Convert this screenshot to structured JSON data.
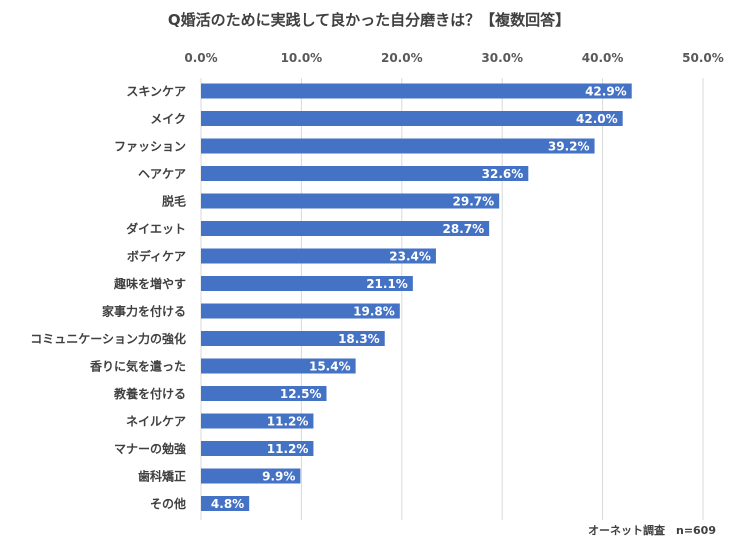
{
  "chart_data": {
    "type": "bar",
    "orientation": "horizontal",
    "title": "Q婚活のために実践して良かった自分磨きは？【複数回答】",
    "categories": [
      "スキンケア",
      "メイク",
      "ファッション",
      "ヘアケア",
      "脱毛",
      "ダイエット",
      "ボディケア",
      "趣味を増やす",
      "家事力を付ける",
      "コミュニケーション力の強化",
      "香りに気を遣った",
      "教養を付ける",
      "ネイルケア",
      "マナーの勉強",
      "歯科矯正",
      "その他"
    ],
    "values": [
      42.9,
      42.0,
      39.2,
      32.6,
      29.7,
      28.7,
      23.4,
      21.1,
      19.8,
      18.3,
      15.4,
      12.5,
      11.2,
      11.2,
      9.9,
      4.8
    ],
    "value_labels": [
      "42.9%",
      "42.0%",
      "39.2%",
      "32.6%",
      "29.7%",
      "28.7%",
      "23.4%",
      "21.1%",
      "19.8%",
      "18.3%",
      "15.4%",
      "12.5%",
      "11.2%",
      "11.2%",
      "9.9%",
      "4.8%"
    ],
    "xlim": [
      0,
      50
    ],
    "ticks": [
      "0.0%",
      "10.0%",
      "20.0%",
      "30.0%",
      "40.0%",
      "50.0%"
    ],
    "tick_values": [
      0,
      10,
      20,
      30,
      40,
      50
    ],
    "axis_position": "top",
    "grid": true,
    "bar_color": "#4472C4",
    "source_note": "オーネット調査　n=609"
  }
}
